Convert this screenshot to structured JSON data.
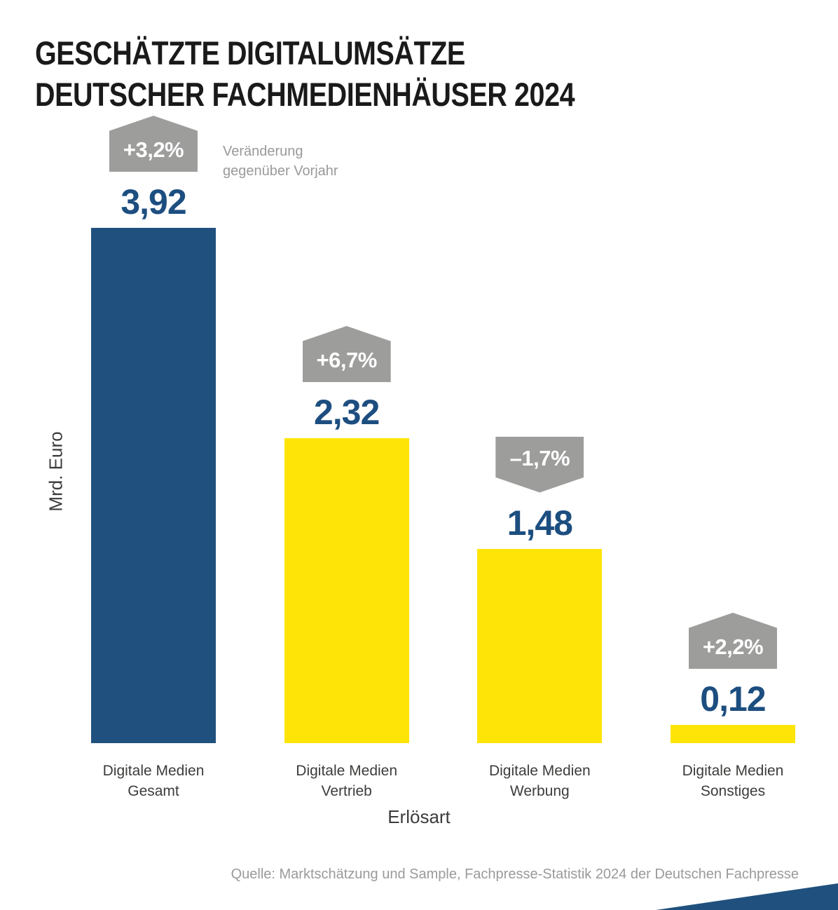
{
  "title": {
    "line1": "GESCHÄTZTE DIGITALUMSÄTZE",
    "line2": "DEUTSCHER FACHMEDIENHÄUSER 2024"
  },
  "legend_note": {
    "line1": "Veränderung",
    "line2": "gegenüber Vorjahr"
  },
  "axes": {
    "y_label": "Mrd. Euro",
    "x_label": "Erlösart"
  },
  "source": "Quelle: Marktschätzung und Sample, Fachpresse-Statistik 2024 der Deutschen Fachpresse",
  "colors": {
    "bar_blue": "#20517e",
    "bar_yellow": "#ffe408",
    "badge_gray": "#9d9d9c",
    "value_blue": "#1d4e80",
    "text_dark": "#3c3c3b",
    "text_gray": "#9a9a9a"
  },
  "chart_data": {
    "type": "bar",
    "title": "Geschätzte Digitalumsätze deutscher Fachmedienhäuser 2024",
    "xlabel": "Erlösart",
    "ylabel": "Mrd. Euro",
    "unit": "Mrd. Euro",
    "ylim": [
      0,
      3.92
    ],
    "grid": false,
    "legend_position": "none",
    "annotation": "Veränderung gegenüber Vorjahr",
    "categories": [
      "Digitale Medien Gesamt",
      "Digitale Medien Vertrieb",
      "Digitale Medien Werbung",
      "Digitale Medien Sonstiges"
    ],
    "values": [
      3.92,
      2.32,
      1.48,
      0.12
    ],
    "change_vs_prior_year_pct": [
      3.2,
      6.7,
      -1.7,
      2.2
    ],
    "columns": [
      {
        "label_line1": "Digitale Medien",
        "label_line2": "Gesamt",
        "value": 3.92,
        "value_label": "3,92",
        "change": "+3,2%",
        "change_direction": "up",
        "bar_color": "#20517e"
      },
      {
        "label_line1": "Digitale Medien",
        "label_line2": "Vertrieb",
        "value": 2.32,
        "value_label": "2,32",
        "change": "+6,7%",
        "change_direction": "up",
        "bar_color": "#ffe408"
      },
      {
        "label_line1": "Digitale Medien",
        "label_line2": "Werbung",
        "value": 1.48,
        "value_label": "1,48",
        "change": "–1,7%",
        "change_direction": "down",
        "bar_color": "#ffe408"
      },
      {
        "label_line1": "Digitale Medien",
        "label_line2": "Sonstiges",
        "value": 0.12,
        "value_label": "0,12",
        "change": "+2,2%",
        "change_direction": "up",
        "bar_color": "#ffe408"
      }
    ]
  }
}
